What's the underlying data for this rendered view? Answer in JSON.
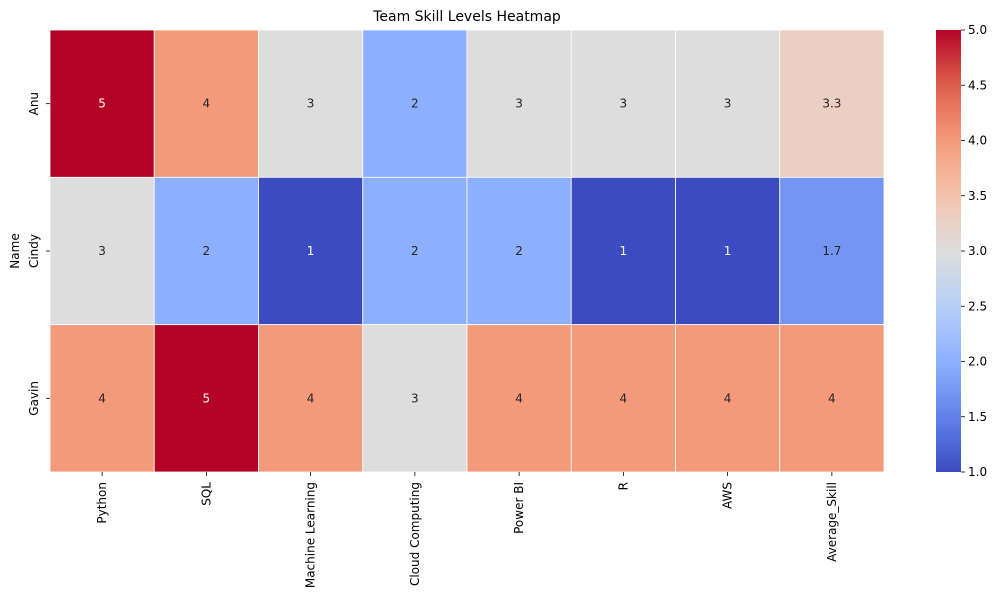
{
  "chart_data": {
    "type": "heatmap",
    "title": "Team Skill Levels Heatmap",
    "xlabel": "",
    "ylabel": "Name",
    "x_categories": [
      "Python",
      "SQL",
      "Machine Learning",
      "Cloud Computing",
      "Power BI",
      "R",
      "AWS",
      "Average_Skill"
    ],
    "y_categories": [
      "Anu",
      "Cindy",
      "Gavin"
    ],
    "values": [
      [
        5,
        4,
        3,
        2,
        3,
        3,
        3,
        3.2857
      ],
      [
        3,
        2,
        1,
        2,
        2,
        1,
        1,
        1.7143
      ],
      [
        4,
        5,
        4,
        3,
        4,
        4,
        4,
        4.0
      ]
    ],
    "cell_labels": [
      [
        "5",
        "4",
        "3",
        "2",
        "3",
        "3",
        "3",
        "3.3"
      ],
      [
        "3",
        "2",
        "1",
        "2",
        "2",
        "1",
        "1",
        "1.7"
      ],
      [
        "4",
        "5",
        "4",
        "3",
        "4",
        "4",
        "4",
        "4"
      ]
    ],
    "colormap": "coolwarm",
    "vmin": 1.0,
    "vmax": 5.0,
    "colorbar_ticks": [
      "1.0",
      "1.5",
      "2.0",
      "2.5",
      "3.0",
      "3.5",
      "4.0",
      "4.5",
      "5.0"
    ],
    "colorbar_tick_values": [
      1.0,
      1.5,
      2.0,
      2.5,
      3.0,
      3.5,
      4.0,
      4.5,
      5.0
    ],
    "cell_border_color": "#ffffff",
    "grid": false,
    "legend": "colorbar-right"
  }
}
